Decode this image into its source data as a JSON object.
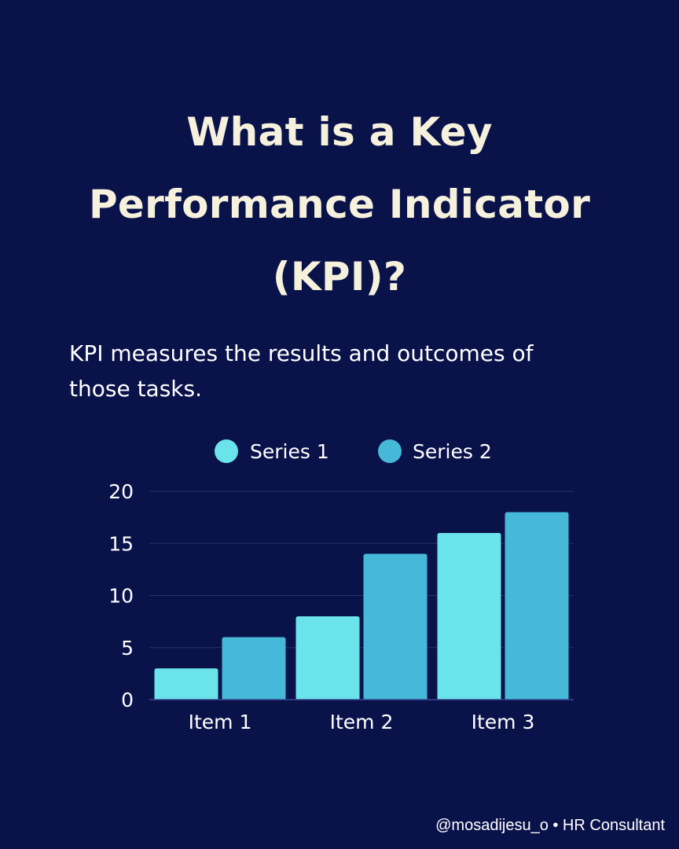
{
  "title_lines": [
    "What is a Key",
    "Performance Indicator",
    "(KPI)?"
  ],
  "subtitle_lines": [
    "KPI measures the results and outcomes of",
    "those tasks."
  ],
  "footer": "@mosadijesu_o • HR Consultant",
  "colors": {
    "background": "#0a124a",
    "title": "#f6f1dc",
    "text": "#ffffff",
    "gridline": "#26306a",
    "baseline": "#3a4690"
  },
  "chart_data": {
    "type": "bar",
    "categories": [
      "Item 1",
      "Item 2",
      "Item 3"
    ],
    "series": [
      {
        "name": "Series 1",
        "values": [
          3,
          8,
          16
        ],
        "color": "#6ae4ea"
      },
      {
        "name": "Series 2",
        "values": [
          6,
          14,
          18
        ],
        "color": "#46b8d8"
      }
    ],
    "ylim": [
      0,
      20
    ],
    "yticks": [
      "0",
      "5",
      "10",
      "15",
      "20"
    ],
    "grid": true,
    "legend": "top-center"
  }
}
